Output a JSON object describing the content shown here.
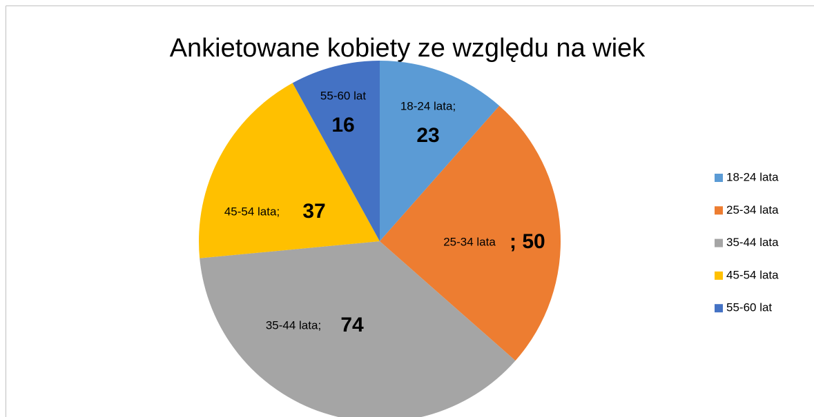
{
  "chart_data": {
    "type": "pie",
    "title": "Ankietowane kobiety ze względu na wiek",
    "categories": [
      "18-24 lata",
      "25-34 lata",
      "35-44 lata",
      "45-54 lata",
      "55-60 lat"
    ],
    "values": [
      23,
      50,
      74,
      37,
      16
    ],
    "colors": [
      "#5b9bd5",
      "#ed7d31",
      "#a5a5a5",
      "#ffc000",
      "#4472c4"
    ],
    "data_labels": [
      "18-24 lata;",
      "25-34 lata",
      "35-44 lata;",
      "45-54 lata;",
      "55-60 lat"
    ],
    "value_labels": [
      "23",
      "; 50",
      "74",
      "37",
      "16"
    ],
    "legend": "right"
  }
}
